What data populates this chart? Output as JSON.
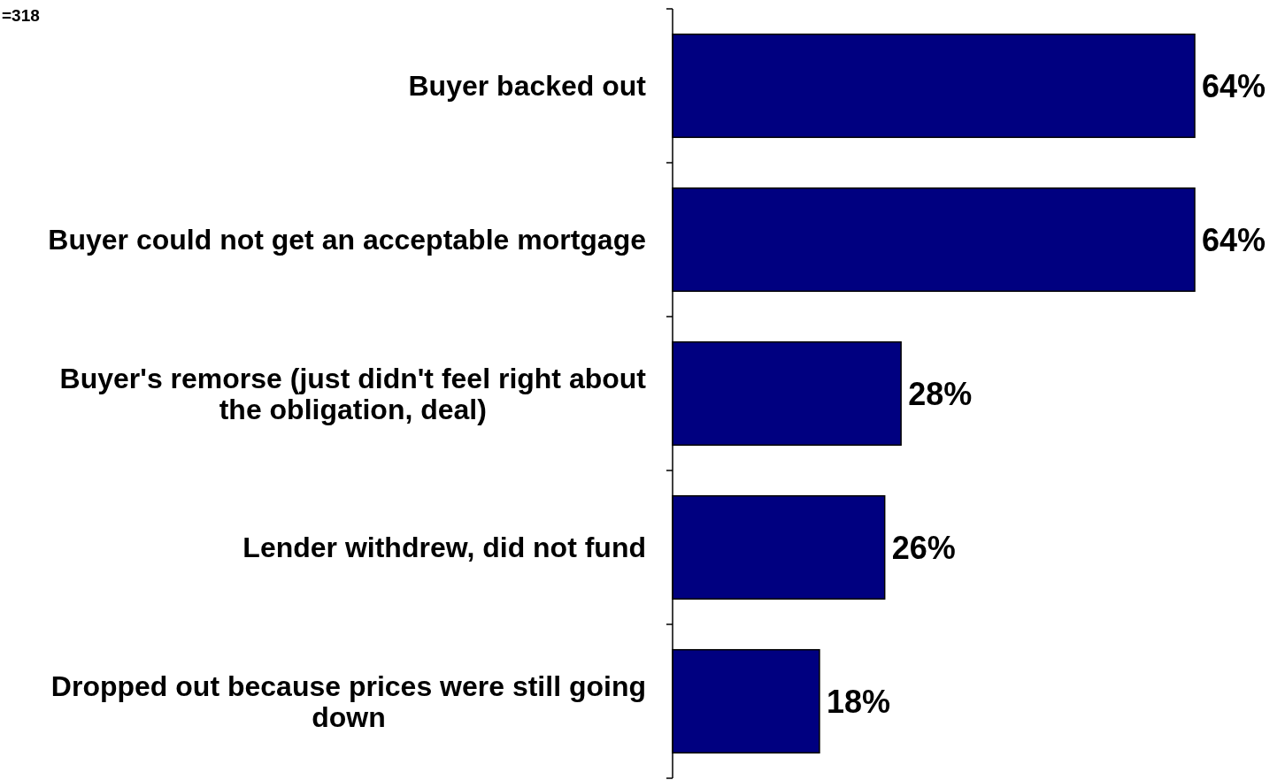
{
  "chart_data": {
    "type": "bar",
    "orientation": "horizontal",
    "data_labels": true,
    "categories": [
      "Buyer backed out",
      "Buyer could not get an acceptable mortgage",
      "Buyer's remorse (just didn't feel right about the obligation, deal)",
      "Lender withdrew, did not fund",
      "Dropped out because prices were still going down"
    ],
    "values": [
      64,
      64,
      28,
      26,
      18
    ],
    "value_labels": [
      "64%",
      "64%",
      "28%",
      "26%",
      "18%"
    ],
    "color": "#000080",
    "annotations": [
      "=318"
    ]
  }
}
